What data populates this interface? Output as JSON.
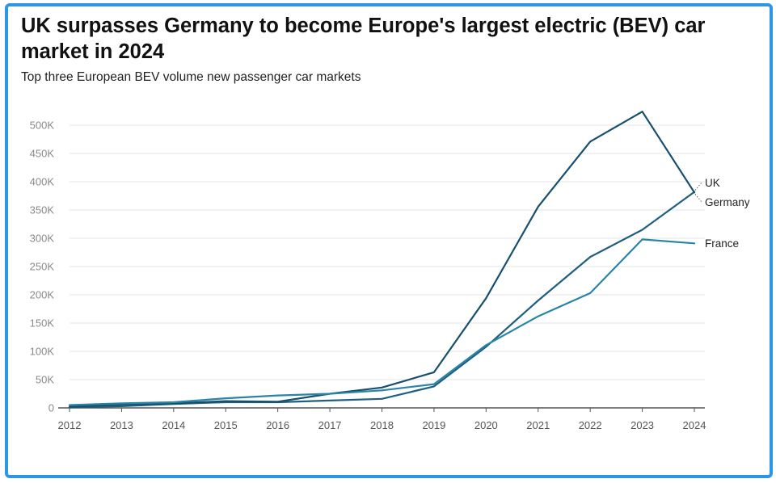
{
  "chart_data": {
    "type": "line",
    "title": "UK surpasses Germany to become Europe's largest electric (BEV) car market in 2024",
    "subtitle": "Top three European BEV volume new passenger car markets",
    "xlabel": "",
    "ylabel": "",
    "x": [
      "2012",
      "2013",
      "2014",
      "2015",
      "2016",
      "2017",
      "2018",
      "2019",
      "2020",
      "2021",
      "2022",
      "2023",
      "2024"
    ],
    "ylim": [
      0,
      500000
    ],
    "yticks": [
      0,
      50000,
      100000,
      150000,
      200000,
      250000,
      300000,
      350000,
      400000,
      450000,
      500000
    ],
    "ytick_labels": [
      "0",
      "50K",
      "100K",
      "150K",
      "200K",
      "250K",
      "300K",
      "350K",
      "400K",
      "450K",
      "500K"
    ],
    "grid": true,
    "legend": "inline-right",
    "series": [
      {
        "name": "UK",
        "color": "#1f5f7f",
        "values": [
          1000,
          3000,
          7000,
          10000,
          10000,
          13000,
          16000,
          38000,
          108000,
          190000,
          267000,
          315000,
          382000
        ]
      },
      {
        "name": "Germany",
        "color": "#174f6c",
        "values": [
          2000,
          6000,
          8000,
          12000,
          11000,
          25000,
          36000,
          63000,
          194000,
          356000,
          471000,
          524000,
          381000
        ]
      },
      {
        "name": "France",
        "color": "#2a84a6",
        "values": [
          5000,
          8000,
          10000,
          17000,
          22000,
          25000,
          31000,
          42000,
          111000,
          162000,
          203000,
          298000,
          291000
        ]
      }
    ]
  }
}
